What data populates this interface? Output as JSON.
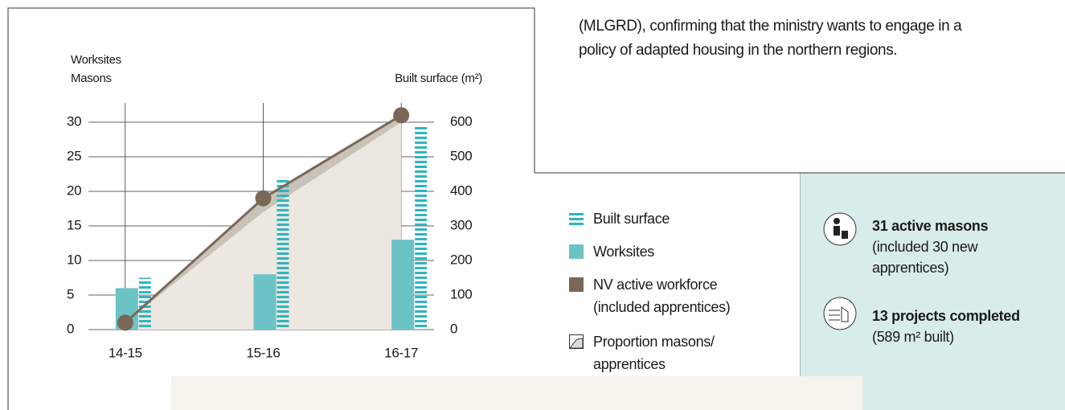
{
  "chart_data": {
    "type": "combo",
    "ylabel_lines": [
      "Worksites",
      "Masons"
    ],
    "y2label": "Built surface (m²)",
    "categories": [
      "14-15",
      "15-16",
      "16-17"
    ],
    "ylim": [
      0,
      30
    ],
    "yticks": [
      0,
      5,
      10,
      15,
      20,
      25,
      30
    ],
    "y2lim": [
      0,
      600
    ],
    "y2ticks": [
      0,
      100,
      200,
      300,
      400,
      500,
      600
    ],
    "grid": true,
    "series": [
      {
        "name": "Built surface",
        "type": "bar",
        "pattern": "stripes",
        "axis": "y2",
        "color": "#2fb5bf",
        "values": [
          150,
          440,
          590
        ]
      },
      {
        "name": "Worksites",
        "type": "bar",
        "color": "#6cc3c5",
        "values": [
          6,
          8,
          13
        ]
      },
      {
        "name": "NV active workforce (included apprentices)",
        "type": "line",
        "color": "#7b6757",
        "values": [
          1,
          19,
          31
        ]
      },
      {
        "name": "Proportion masons/ apprentices",
        "type": "area",
        "color": "#ece7e1",
        "values": [
          1,
          17,
          30
        ]
      }
    ]
  },
  "paragraph_lines": [
    "(MLGRD), confirming that the ministry wants to engage in a",
    "policy of adapted housing in the northern regions."
  ],
  "highlights": [
    {
      "title": "31 active masons",
      "lines": [
        "(included 30 new",
        "apprentices)"
      ]
    },
    {
      "title": "13 projects completed",
      "lines": [
        "(589 m² built)"
      ]
    }
  ]
}
